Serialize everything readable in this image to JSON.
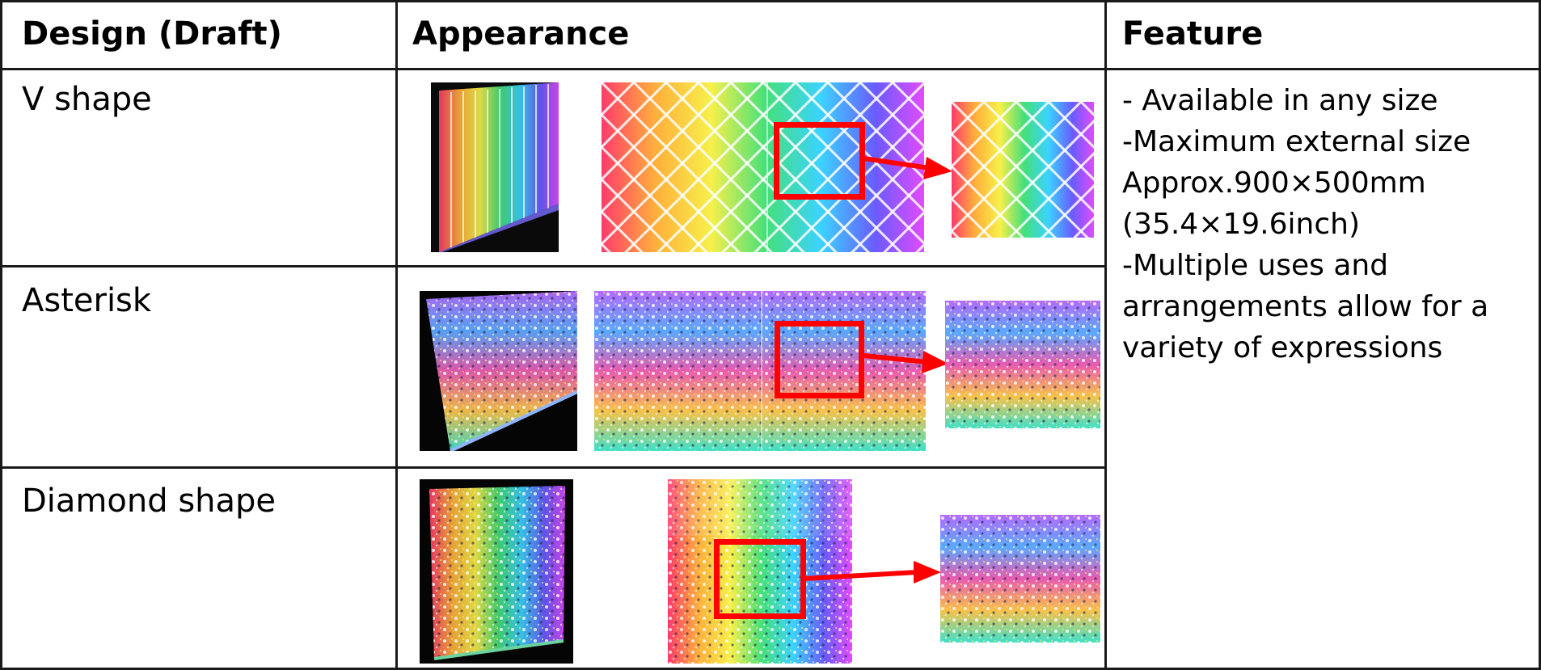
{
  "table": {
    "headers": {
      "design": "Design (Draft)",
      "appearance": "Appearance",
      "feature": "Feature"
    },
    "rows": [
      {
        "design": "V shape"
      },
      {
        "design": "Asterisk"
      },
      {
        "design": "Diamond shape"
      }
    ],
    "feature_lines": [
      "- Available in any size",
      "-Maximum external size",
      "Approx.900×500mm",
      "(35.4×19.6inch)",
      "-Multiple uses and",
      "arrangements allow for a",
      "variety of expressions"
    ]
  },
  "colors": {
    "border": "#1a1a1a",
    "highlight": "#ff0000"
  }
}
